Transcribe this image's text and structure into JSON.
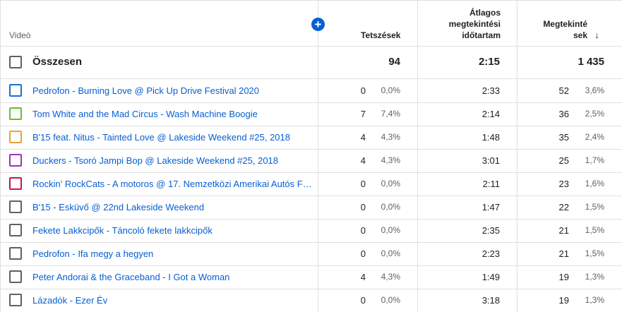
{
  "header": {
    "video_label": "Videó",
    "likes_label": "Tetszések",
    "avg_duration_line1": "Átlagos",
    "avg_duration_line2": "megtekintési",
    "avg_duration_line3": "időtartam",
    "views_line1": "Megtekinté",
    "views_line2": "sek",
    "add_icon": "plus-circle-icon",
    "sort_icon": "arrow-down-icon"
  },
  "total": {
    "label": "Összesen",
    "likes": "94",
    "avg_duration": "2:15",
    "views": "1 435"
  },
  "rows": [
    {
      "title": "Pedrofon - Burning Love @ Pick Up Drive Festival 2020",
      "likes": "0",
      "likes_pct": "0,0%",
      "avg_duration": "2:33",
      "views": "52",
      "views_pct": "3,6%",
      "color": "#1e6fd0"
    },
    {
      "title": "Tom White and the Mad Circus - Wash Machine Boogie",
      "likes": "7",
      "likes_pct": "7,4%",
      "avg_duration": "2:14",
      "views": "36",
      "views_pct": "2,5%",
      "color": "#6abf2e"
    },
    {
      "title": "B'15 feat. Nitus - Tainted Love @ Lakeside Weekend #25, 2018",
      "likes": "4",
      "likes_pct": "4,3%",
      "avg_duration": "1:48",
      "views": "35",
      "views_pct": "2,4%",
      "color": "#e8a33a"
    },
    {
      "title": "Duckers - Tsoró Jampi Bop @ Lakeside Weekend #25, 2018",
      "likes": "4",
      "likes_pct": "4,3%",
      "avg_duration": "3:01",
      "views": "25",
      "views_pct": "1,7%",
      "color": "#9c36b5"
    },
    {
      "title": "Rockin' RockCats - A motoros @ 17. Nemzetközi Amerikai Autós Fe...",
      "likes": "0",
      "likes_pct": "0,0%",
      "avg_duration": "2:11",
      "views": "23",
      "views_pct": "1,6%",
      "color": "#c2185b"
    },
    {
      "title": "B'15 - Esküvő @ 22nd Lakeside Weekend",
      "likes": "0",
      "likes_pct": "0,0%",
      "avg_duration": "1:47",
      "views": "22",
      "views_pct": "1,5%",
      "color": "#606060"
    },
    {
      "title": "Fekete Lakkcipők - Táncoló fekete lakkcipők",
      "likes": "0",
      "likes_pct": "0,0%",
      "avg_duration": "2:35",
      "views": "21",
      "views_pct": "1,5%",
      "color": "#606060"
    },
    {
      "title": "Pedrofon - Ifa megy a hegyen",
      "likes": "0",
      "likes_pct": "0,0%",
      "avg_duration": "2:23",
      "views": "21",
      "views_pct": "1,5%",
      "color": "#606060"
    },
    {
      "title": "Peter Andorai & the Graceband - I Got a Woman",
      "likes": "4",
      "likes_pct": "4,3%",
      "avg_duration": "1:49",
      "views": "19",
      "views_pct": "1,3%",
      "color": "#606060"
    },
    {
      "title": "Lázadók - Ezer Év",
      "likes": "0",
      "likes_pct": "0,0%",
      "avg_duration": "3:18",
      "views": "19",
      "views_pct": "1,3%",
      "color": "#606060"
    }
  ]
}
